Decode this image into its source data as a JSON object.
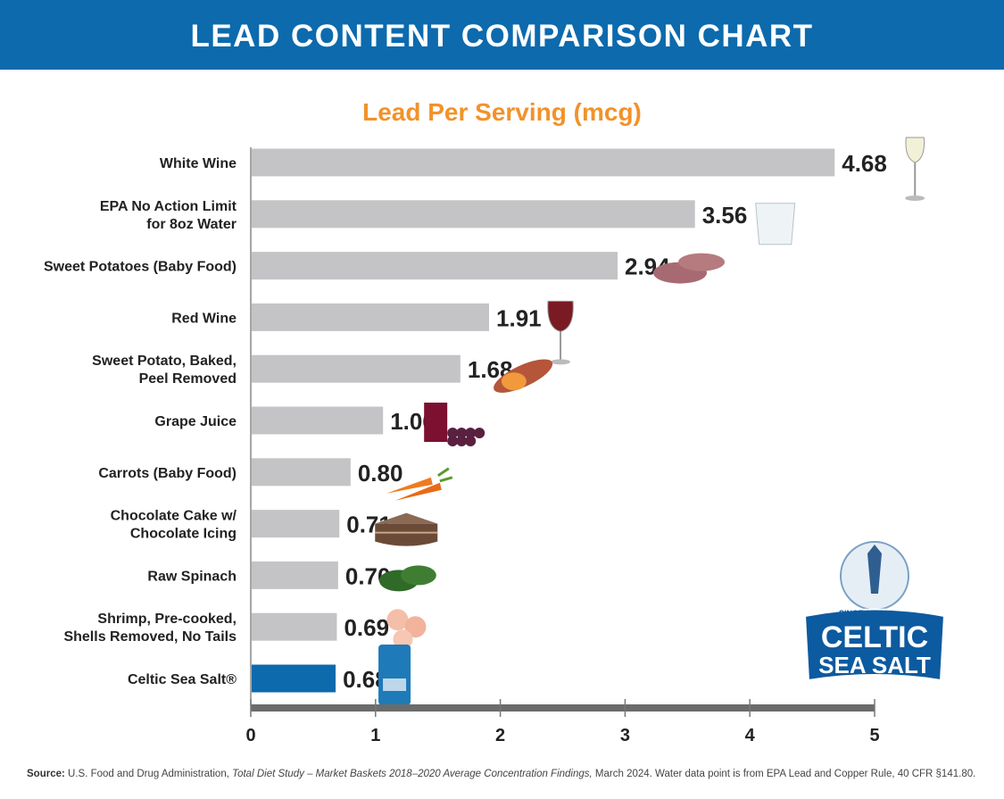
{
  "header": {
    "title": "LEAD CONTENT COMPARISON CHART"
  },
  "chart_data": {
    "type": "bar",
    "orientation": "horizontal",
    "title": "Lead Per Serving (mcg)",
    "categories": [
      [
        "White Wine"
      ],
      [
        "EPA No Action Limit",
        "for 8oz Water"
      ],
      [
        "Sweet Potatoes (Baby Food)"
      ],
      [
        "Red Wine"
      ],
      [
        "Sweet Potato, Baked,",
        "Peel Removed"
      ],
      [
        "Grape Juice"
      ],
      [
        "Carrots (Baby Food)"
      ],
      [
        "Chocolate Cake w/",
        "Chocolate Icing"
      ],
      [
        "Raw Spinach"
      ],
      [
        "Shrimp, Pre-cooked,",
        "Shells Removed, No Tails"
      ],
      [
        "Celtic Sea Salt®"
      ]
    ],
    "values": [
      4.68,
      3.56,
      2.94,
      1.91,
      1.68,
      1.06,
      0.8,
      0.71,
      0.7,
      0.69,
      0.68
    ],
    "value_labels": [
      "4.68",
      "3.56",
      "2.94",
      "1.91",
      "1.68",
      "1.06",
      "0.80",
      "0.71",
      "0.70",
      "0.69",
      "0.68"
    ],
    "highlight_index": 10,
    "xlim": [
      0,
      5
    ],
    "xticks": [
      "0",
      "1",
      "2",
      "3",
      "4",
      "5"
    ],
    "grid": false,
    "colors": {
      "bar": "#c4c4c6",
      "highlight": "#0c6aad",
      "axis": "#6b6b6b",
      "title": "#f2922a",
      "header": "#0c6aad"
    },
    "icons": [
      "white-wine-glass-icon",
      "water-glass-icon",
      "sweet-potatoes-icon",
      "red-wine-glass-icon",
      "baked-sweet-potato-icon",
      "grape-juice-icon",
      "carrots-icon",
      "chocolate-cake-icon",
      "spinach-icon",
      "shrimp-icon",
      "celtic-sea-salt-bag-icon"
    ]
  },
  "logo": {
    "since": "SINCE 1976",
    "line1": "CELTIC",
    "line2": "SEA SALT"
  },
  "source": {
    "label": "Source:",
    "text1": " U.S. Food and Drug Administration, ",
    "italic": "Total Diet Study – Market Baskets 2018–2020 Average Concentration Findings,",
    "text2": " March 2024. Water data point is from EPA Lead and Copper Rule, 40 CFR §141.80."
  }
}
